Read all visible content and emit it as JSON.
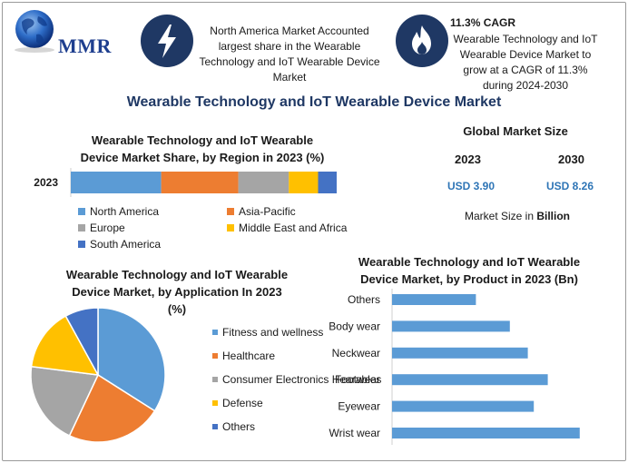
{
  "brand": {
    "logo_text": "MMR"
  },
  "highlights": [
    {
      "icon": "lightning-icon",
      "title": "",
      "text": "North America Market Accounted largest share in the Wearable Technology and IoT Wearable Device Market"
    },
    {
      "icon": "flame-icon",
      "title": "11.3% CAGR",
      "text": "Wearable Technology and IoT Wearable Device Market to grow at a CAGR of 11.3% during 2024-2030"
    }
  ],
  "main_title": "Wearable Technology and IoT Wearable Device Market",
  "global_market": {
    "title": "Global Market Size",
    "years": [
      "2023",
      "2030"
    ],
    "values": [
      "USD 3.90",
      "USD 8.26"
    ],
    "unit_prefix": "Market Size in ",
    "unit_bold": "Billion"
  },
  "colors": {
    "blue": "#5b9bd5",
    "orange": "#ed7d31",
    "gray": "#a5a5a5",
    "gold": "#ffc000",
    "dark_blue": "#4472c4",
    "navy": "#1f3864"
  },
  "chart_data": [
    {
      "type": "bar",
      "orientation": "horizontal-stacked",
      "title_lines": [
        "Wearable Technology and IoT Wearable",
        "Device Market Share, by Region in 2023 (%)"
      ],
      "categories": [
        "2023"
      ],
      "series": [
        {
          "name": "North America",
          "values": [
            34
          ],
          "color": "#5b9bd5"
        },
        {
          "name": "Asia-Pacific",
          "values": [
            29
          ],
          "color": "#ed7d31"
        },
        {
          "name": "Europe",
          "values": [
            19
          ],
          "color": "#a5a5a5"
        },
        {
          "name": "Middle East and Africa",
          "values": [
            11
          ],
          "color": "#ffc000"
        },
        {
          "name": "South America",
          "values": [
            7
          ],
          "color": "#4472c4"
        }
      ],
      "xlim": [
        0,
        100
      ]
    },
    {
      "type": "pie",
      "title_lines": [
        "Wearable Technology and IoT Wearable",
        "Device Market, by Application In 2023",
        "(%)"
      ],
      "labels": [
        "Fitness and wellness",
        "Healthcare",
        "Consumer Electronics Hearables",
        "Defense",
        "Others"
      ],
      "values": [
        34,
        23,
        20,
        15,
        8
      ],
      "colors": [
        "#5b9bd5",
        "#ed7d31",
        "#a5a5a5",
        "#ffc000",
        "#4472c4"
      ]
    },
    {
      "type": "bar",
      "orientation": "horizontal",
      "title_lines": [
        "Wearable Technology and IoT Wearable",
        "Device Market, by Product in 2023 (Bn)"
      ],
      "categories": [
        "Others",
        "Body wear",
        "Neckwear",
        "Footwear",
        "Eyewear",
        "Wrist wear"
      ],
      "values": [
        0.42,
        0.59,
        0.68,
        0.78,
        0.71,
        0.94
      ],
      "xlim": [
        0,
        1
      ],
      "color": "#5b9bd5"
    }
  ]
}
